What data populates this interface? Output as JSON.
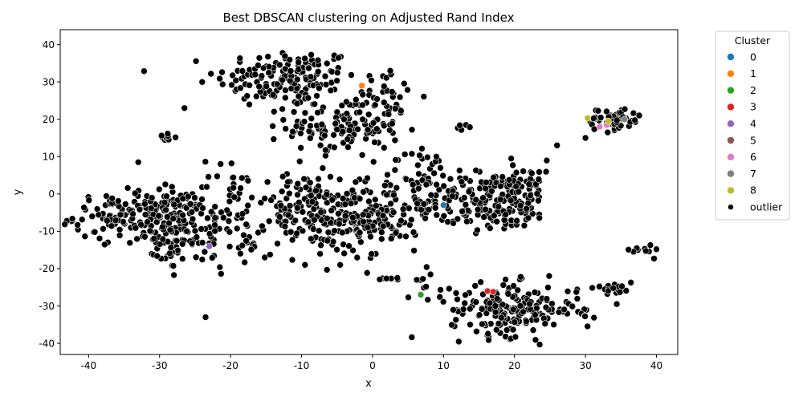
{
  "chart_data": {
    "type": "scatter",
    "title": "Best DBSCAN clustering on Adjusted Rand Index",
    "xlabel": "x",
    "ylabel": "y",
    "xlim": [
      -44,
      43
    ],
    "ylim": [
      -43,
      44
    ],
    "xticks": [
      "-40",
      "-30",
      "-20",
      "-10",
      "0",
      "10",
      "20",
      "30",
      "40"
    ],
    "yticks": [
      "-40",
      "-30",
      "-20",
      "-10",
      "0",
      "10",
      "20",
      "30",
      "40"
    ],
    "grid": false,
    "legend": {
      "title": "Cluster",
      "placement": "outside-top-right",
      "entries": [
        {
          "label": "0",
          "color": "#1f77b4"
        },
        {
          "label": "1",
          "color": "#ff7f0e"
        },
        {
          "label": "2",
          "color": "#2ca02c"
        },
        {
          "label": "3",
          "color": "#d62728"
        },
        {
          "label": "4",
          "color": "#9467bd"
        },
        {
          "label": "5",
          "color": "#8c564b"
        },
        {
          "label": "6",
          "color": "#e377c2"
        },
        {
          "label": "7",
          "color": "#7f7f7f"
        },
        {
          "label": "8",
          "color": "#bcbd22"
        },
        {
          "label": "outlier",
          "color": "#000000"
        }
      ]
    },
    "outlier_blobs": [
      {
        "cx": -12,
        "cy": 31,
        "sx": 5,
        "sy": 4,
        "n": 160
      },
      {
        "cx": -4,
        "cy": 18,
        "sx": 4,
        "sy": 4,
        "n": 130
      },
      {
        "cx": 2,
        "cy": 26,
        "sx": 2.5,
        "sy": 3,
        "n": 30
      },
      {
        "cx": -34,
        "cy": -6,
        "sx": 4,
        "sy": 3,
        "n": 130
      },
      {
        "cx": -28,
        "cy": -8,
        "sx": 3,
        "sy": 5,
        "n": 100
      },
      {
        "cx": -22,
        "cy": -6,
        "sx": 3,
        "sy": 7,
        "n": 90
      },
      {
        "cx": -10,
        "cy": -4,
        "sx": 4,
        "sy": 5,
        "n": 110
      },
      {
        "cx": -4,
        "cy": -8,
        "sx": 3.5,
        "sy": 5,
        "n": 100
      },
      {
        "cx": 2,
        "cy": -5,
        "sx": 3,
        "sy": 5,
        "n": 70
      },
      {
        "cx": 7,
        "cy": 2,
        "sx": 3,
        "sy": 5,
        "n": 70
      },
      {
        "cx": 17,
        "cy": -2,
        "sx": 4,
        "sy": 4,
        "n": 170
      },
      {
        "cx": 21,
        "cy": 3,
        "sx": 2.5,
        "sy": 3,
        "n": 40
      },
      {
        "cx": 20,
        "cy": -31,
        "sx": 4.5,
        "sy": 3.5,
        "n": 190
      },
      {
        "cx": 34,
        "cy": 20,
        "sx": 2,
        "sy": 1.5,
        "n": 55
      },
      {
        "cx": 34,
        "cy": -25,
        "sx": 1.5,
        "sy": 1,
        "n": 20
      },
      {
        "cx": 38,
        "cy": -15,
        "sx": 0.8,
        "sy": 0.8,
        "n": 10
      },
      {
        "cx": -29,
        "cy": 15,
        "sx": 1,
        "sy": 0.8,
        "n": 10
      },
      {
        "cx": -29,
        "cy": -17,
        "sx": 1,
        "sy": 1,
        "n": 8
      },
      {
        "cx": -18,
        "cy": -14,
        "sx": 2,
        "sy": 2,
        "n": 12
      },
      {
        "cx": 8,
        "cy": -24,
        "sx": 1,
        "sy": 2,
        "n": 10
      },
      {
        "cx": 3,
        "cy": -22,
        "sx": 1,
        "sy": 0.6,
        "n": 6
      },
      {
        "cx": 30,
        "cy": -32,
        "sx": 0.8,
        "sy": 1,
        "n": 6
      },
      {
        "cx": 12,
        "cy": 18,
        "sx": 0.6,
        "sy": 1.5,
        "n": 5
      }
    ],
    "outlier_points": [
      {
        "x": -39.5,
        "y": -6
      },
      {
        "x": -33,
        "y": 8.5
      },
      {
        "x": -26.5,
        "y": 23
      },
      {
        "x": -24,
        "y": 30
      },
      {
        "x": 26,
        "y": 13
      },
      {
        "x": 30,
        "y": 15
      },
      {
        "x": 9,
        "y": 10
      },
      {
        "x": 2.5,
        "y": 33
      }
    ],
    "cluster_points": [
      {
        "cluster": "0",
        "x": 10,
        "y": -3
      },
      {
        "cluster": "1",
        "x": -1.5,
        "y": 29
      },
      {
        "cluster": "2",
        "x": 6.8,
        "y": -27
      },
      {
        "cluster": "3",
        "x": 16.2,
        "y": -26
      },
      {
        "cluster": "3",
        "x": 17,
        "y": -26.2
      },
      {
        "cluster": "4",
        "x": -23,
        "y": -14
      },
      {
        "cluster": "6",
        "x": 32,
        "y": 18
      },
      {
        "cluster": "6",
        "x": 33,
        "y": 18.5
      },
      {
        "cluster": "7",
        "x": 35.5,
        "y": 20
      },
      {
        "cluster": "8",
        "x": 30.3,
        "y": 20.3
      },
      {
        "cluster": "8",
        "x": 33.2,
        "y": 19.5
      }
    ]
  }
}
